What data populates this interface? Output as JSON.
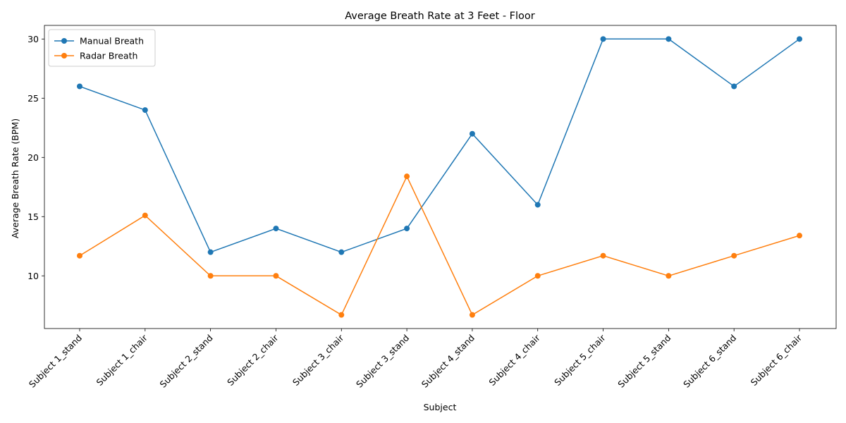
{
  "chart_data": {
    "type": "line",
    "title": "Average Breath Rate at 3 Feet - Floor",
    "xlabel": "Subject",
    "ylabel": "Average Breath Rate (BPM)",
    "categories": [
      "Subject 1_stand",
      "Subject 1_chair",
      "Subject 2_stand",
      "Subject 2_chair",
      "Subject 3_chair",
      "Subject 3_stand",
      "Subject 4_stand",
      "Subject 4_chair",
      "Subject 5_chair",
      "Subject 5_stand",
      "Subject 6_stand",
      "Subject 6_chair"
    ],
    "series": [
      {
        "name": "Manual Breath",
        "color": "#1f77b4",
        "values": [
          26,
          24,
          12,
          14,
          12,
          14,
          22,
          16,
          30,
          30,
          26,
          30
        ]
      },
      {
        "name": "Radar Breath",
        "color": "#ff7f0e",
        "values": [
          11.7,
          15.1,
          10,
          10,
          6.7,
          18.4,
          6.7,
          10,
          11.7,
          10,
          11.7,
          13.4
        ]
      }
    ],
    "ylim": [
      5.55,
      31.15
    ],
    "yticks": [
      10,
      15,
      20,
      25,
      30
    ],
    "grid": false,
    "legend_position": "top-left"
  }
}
